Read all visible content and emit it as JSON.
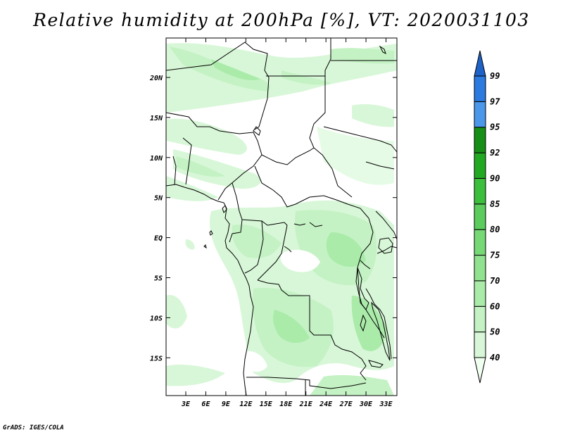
{
  "title": "Relative humidity at 200hPa [%], VT: 2020031103",
  "credit": "GrADS: IGES/COLA",
  "map": {
    "lat_ticks": [
      "20N",
      "15N",
      "10N",
      "5N",
      "EQ",
      "5S",
      "10S",
      "15S"
    ],
    "lon_ticks": [
      "3E",
      "6E",
      "9E",
      "12E",
      "15E",
      "18E",
      "21E",
      "24E",
      "27E",
      "30E",
      "33E"
    ],
    "coastline_color": "#000000"
  },
  "colorbar": {
    "levels": [
      "40",
      "50",
      "60",
      "70",
      "75",
      "80",
      "85",
      "90",
      "92",
      "95",
      "97",
      "99"
    ],
    "colors": [
      "#f0fff0",
      "#d8f7d8",
      "#c4f2c4",
      "#aaebaa",
      "#90e290",
      "#76d976",
      "#5ccd5c",
      "#3cbf3c",
      "#22a922",
      "#168f16",
      "#4b97ea",
      "#2a7ae0",
      "#1e62c8"
    ]
  }
}
